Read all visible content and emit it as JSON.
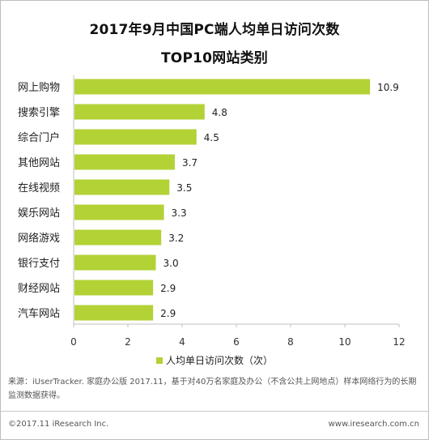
{
  "title_line1": "2017年9月中国PC端人均单日访问次数",
  "title_line2": "TOP10网站类别",
  "legend_label": "人均单日访问次数（次）",
  "source_text": "来源：iUserTracker. 家庭办公版 2017.11，基于对40万名家庭及办公（不含公共上网地点）样本网络行为的长期监测数据获得。",
  "footer_left": "©2017.11 iResearch Inc.",
  "footer_right": "www.iresearch.com.cn",
  "colors": {
    "bar": "#b2d235",
    "axis": "#bfbfbf",
    "text": "#222222"
  },
  "chart_data": {
    "type": "bar",
    "orientation": "horizontal",
    "categories": [
      "网上购物",
      "搜索引擎",
      "综合门户",
      "其他网站",
      "在线视频",
      "娱乐网站",
      "网络游戏",
      "银行支付",
      "财经网站",
      "汽车网站"
    ],
    "series": [
      {
        "name": "人均单日访问次数（次）",
        "values": [
          10.9,
          4.8,
          4.5,
          3.7,
          3.5,
          3.3,
          3.2,
          3.0,
          2.9,
          2.9
        ]
      }
    ],
    "value_labels": [
      "10.9",
      "4.8",
      "4.5",
      "3.7",
      "3.5",
      "3.3",
      "3.2",
      "3.0",
      "2.9",
      "2.9"
    ],
    "xlim": [
      0,
      12
    ],
    "xticks": [
      0,
      2,
      4,
      6,
      8,
      10,
      12
    ],
    "legend_position": "bottom",
    "grid": false
  }
}
